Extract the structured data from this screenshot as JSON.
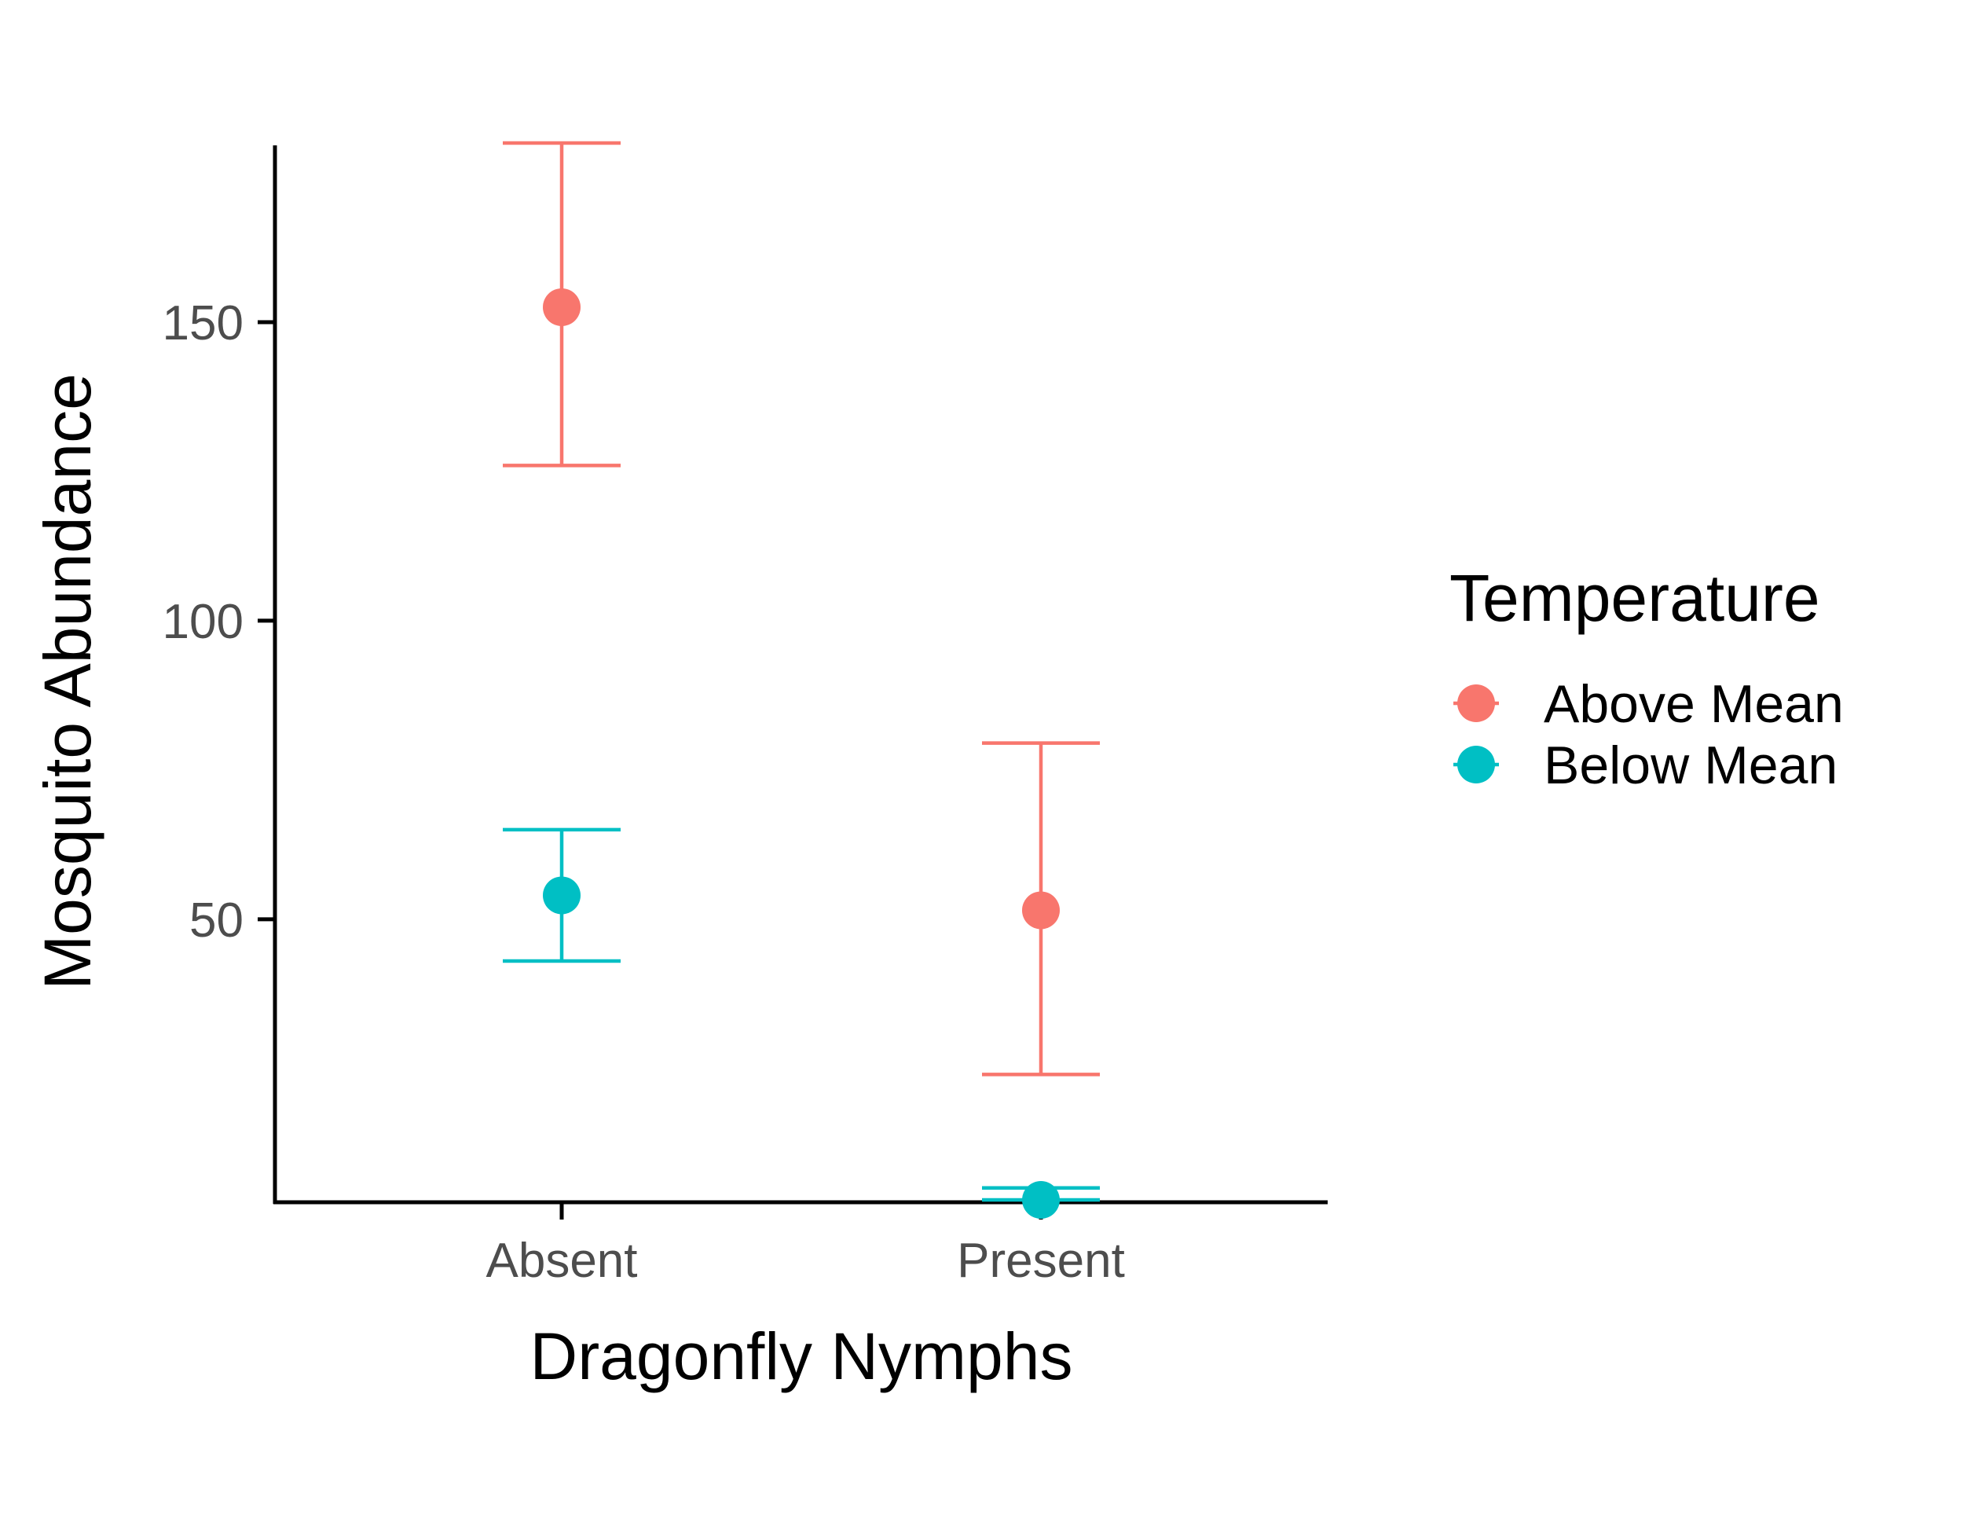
{
  "chart_data": {
    "type": "scatter",
    "subtype": "point-with-errorbars",
    "title": "",
    "xlabel": "Dragonfly Nymphs",
    "ylabel": "Mosquito Abundance",
    "categories": [
      "Absent",
      "Present"
    ],
    "ylim": [
      3,
      180
    ],
    "yticks": [
      50,
      100,
      150
    ],
    "ytick_labels": [
      "50",
      "100",
      "150"
    ],
    "grid": false,
    "legend": {
      "title": "Temperature",
      "position": "right"
    },
    "series": [
      {
        "name": "Above Mean",
        "color": "#F8766D",
        "points": [
          {
            "x": "Absent",
            "y": 152.5,
            "ymin": 126,
            "ymax": 180
          },
          {
            "x": "Present",
            "y": 51.5,
            "ymin": 24,
            "ymax": 79.5
          }
        ]
      },
      {
        "name": "Below Mean",
        "color": "#00BFC4",
        "points": [
          {
            "x": "Absent",
            "y": 54,
            "ymin": 43,
            "ymax": 65
          },
          {
            "x": "Present",
            "y": 3,
            "ymin": 3,
            "ymax": 5
          }
        ]
      }
    ]
  }
}
